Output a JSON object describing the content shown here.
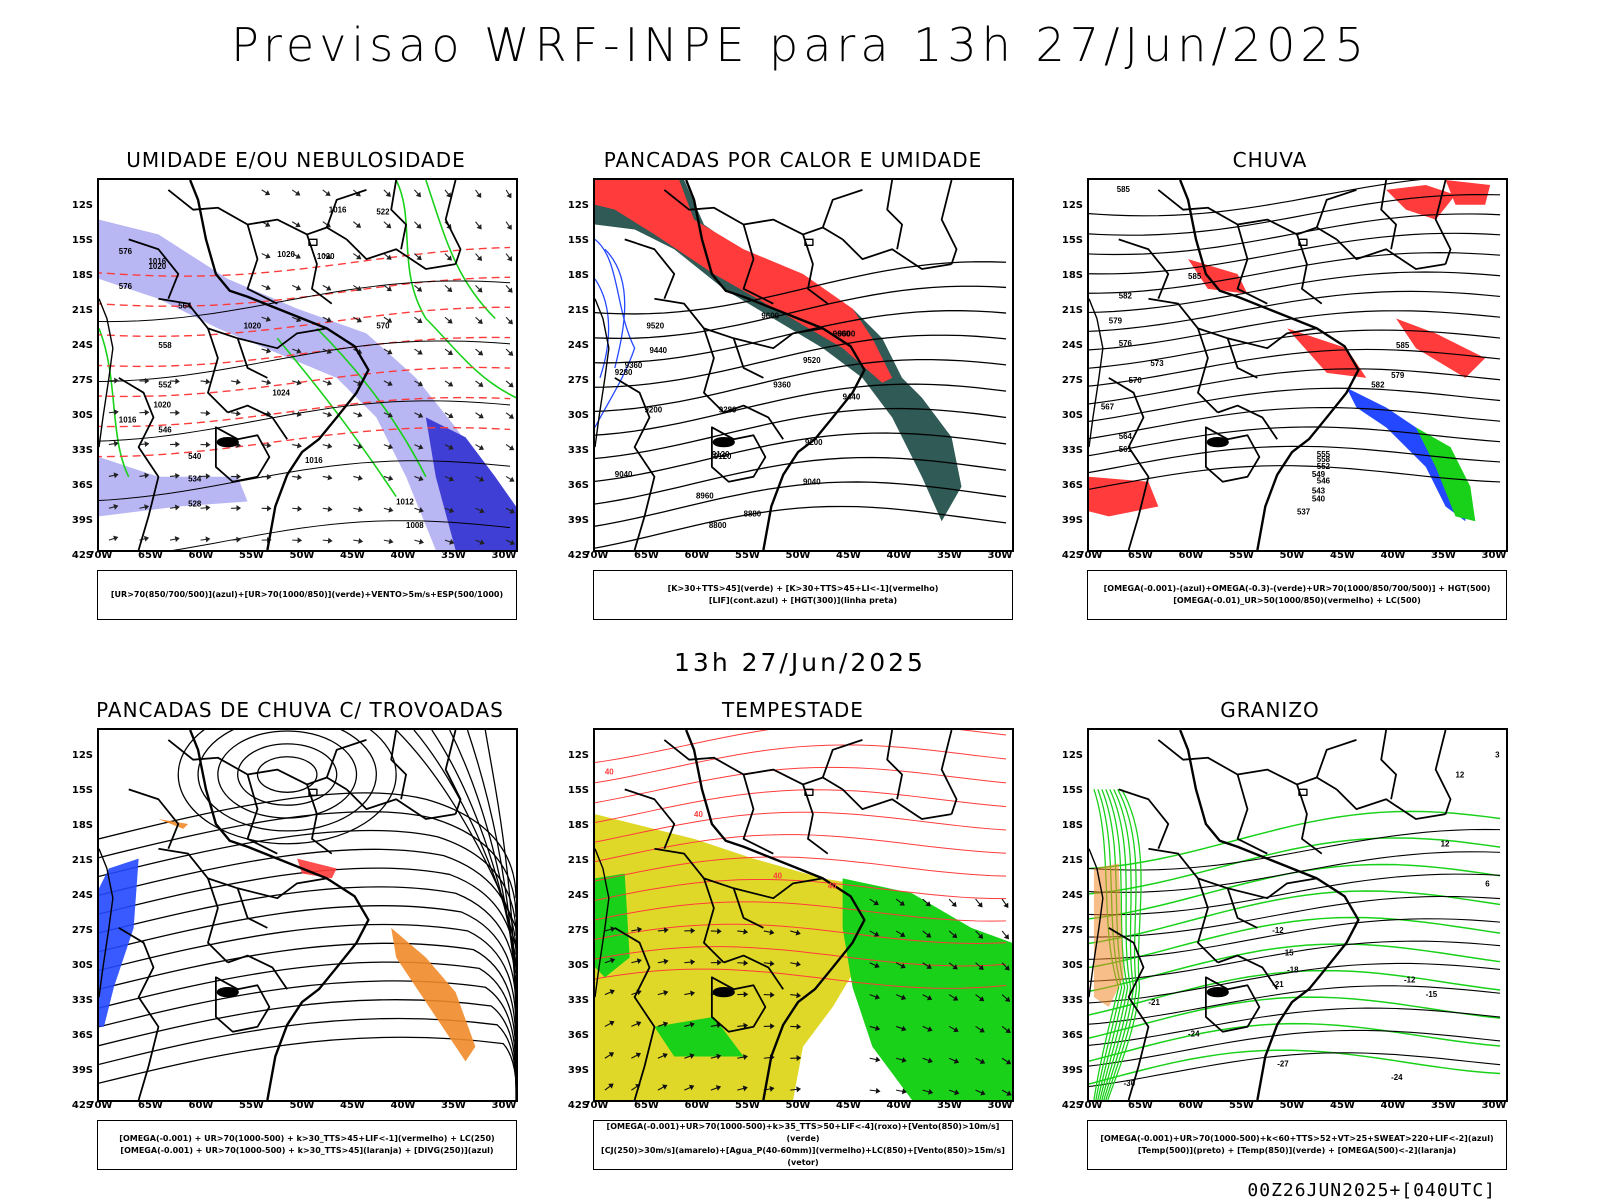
{
  "header": {
    "title": "Previsao WRF-INPE  para 13h 27/Jun/2025"
  },
  "subtitle": "13h 27/Jun/2025",
  "footer": "00Z26JUN2025+[040UTC]",
  "axes": {
    "lat_labels": [
      "12S",
      "15S",
      "18S",
      "21S",
      "24S",
      "27S",
      "30S",
      "33S",
      "36S",
      "39S",
      "42S"
    ],
    "lon_labels": [
      "70W",
      "65W",
      "60W",
      "55W",
      "50W",
      "45W",
      "40W",
      "35W",
      "30W"
    ]
  },
  "colors": {
    "red": "#ff3b3b",
    "green": "#19d119",
    "blue": "#2448ff",
    "lavender": "#b9b6f4",
    "darkblue": "#3f3fd6",
    "teal": "#2f5a55",
    "yellow": "#e0d829",
    "orange": "#f0892a"
  },
  "panels": [
    {
      "title": "UMIDADE E/OU NEBULOSIDADE",
      "legend": [
        "[UR>70(850/700/500)](azul)+[UR>70(1000/850)](verde)+VENTO>5m/s+ESP(500/1000)"
      ],
      "contour_labels": [
        "1016",
        "1020",
        "1020",
        "1016",
        "1020",
        "1024",
        "1020",
        "1016",
        "1012",
        "1008",
        "1016",
        "1020",
        "570",
        "564",
        "558",
        "552",
        "546",
        "540",
        "534",
        "528",
        "522",
        "576",
        "576"
      ]
    },
    {
      "title": "PANCADAS POR CALOR E UMIDADE",
      "legend": [
        "[K>30+TTS>45](verde) + [K>30+TTS>45+LI<-1](vermelho)",
        "[LIF](cont.azul) + [HGT(300)](linha preta)"
      ],
      "contour_labels": [
        "9600",
        "9600",
        "9520",
        "9440",
        "9360",
        "9280",
        "9200",
        "9120",
        "9520",
        "9440",
        "9360",
        "9280",
        "9200",
        "9120",
        "9040",
        "9040",
        "8960",
        "8880",
        "8800",
        "9600"
      ]
    },
    {
      "title": "CHUVA",
      "legend": [
        "[OMEGA(-0.001)-(azul)+OMEGA(-0.3)-(verde)+UR>70(1000/850/700/500)] + HGT(500)",
        "[OMEGA(-0.01)_UR>50(1000/850)(vermelho) + LC(500)"
      ],
      "contour_labels": [
        "585",
        "585",
        "582",
        "579",
        "576",
        "573",
        "570",
        "567",
        "564",
        "561",
        "558",
        "555",
        "552",
        "549",
        "546",
        "543",
        "540",
        "537",
        "579",
        "582",
        "585"
      ]
    },
    {
      "title": "PANCADAS DE CHUVA C/ TROVOADAS",
      "legend": [
        "[OMEGA(-0.001) + UR>70(1000-500) + k>30_TTS>45+LIF<-1](vermelho) + LC(250)",
        "[OMEGA(-0.001) + UR>70(1000-500) + k>30_TTS>45](laranja) + [DIVG(250)](azul)"
      ],
      "contour_labels": []
    },
    {
      "title": "TEMPESTADE",
      "legend": [
        "[OMEGA(-0.001)+UR>70(1000-500)+k>35_TTS>50+LIF<-4](roxo)+[Vento(850)>10m/s](verde)",
        "[CJ(250)>30m/s](amarelo)+[Agua_P(40-60mm)](vermelho)+LC(850)+[Vento(850)>15m/s](vetor)"
      ],
      "contour_labels": [
        "40",
        "40",
        "40",
        "40"
      ]
    },
    {
      "title": "GRANIZO",
      "legend": [
        "[OMEGA(-0.001)+UR>70(1000-500)+k<60+TTS>52+VT>25+SWEAT>220+LIF<-2](azul)",
        "[Temp(500)](preto) + [Temp(850)](verde) + [OMEGA(500)<-2](laranja)"
      ],
      "contour_labels": [
        "-12",
        "-15",
        "-18",
        "-21",
        "-21",
        "-24",
        "-27",
        "-30",
        "-24",
        "-12",
        "-15",
        "12",
        "12",
        "3",
        "6"
      ]
    }
  ]
}
